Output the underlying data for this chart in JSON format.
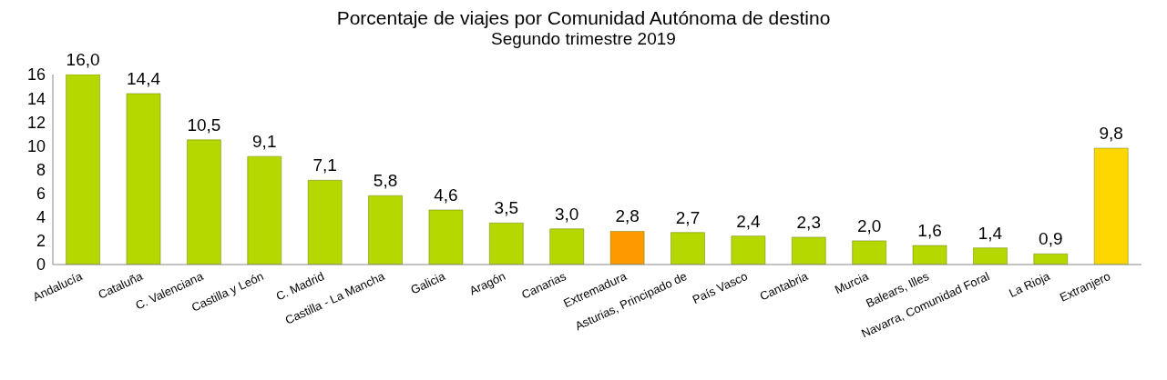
{
  "chart_data": {
    "type": "bar",
    "title": "Porcentaje de viajes por Comunidad Autónoma de destino",
    "subtitle": "Segundo trimestre 2019",
    "categories": [
      "Andalucía",
      "Cataluña",
      "C. Valenciana",
      "Castilla y  León",
      "C. Madrid",
      "Castilla - La Mancha",
      "Galicia",
      "Aragón",
      "Canarias",
      "Extremadura",
      "Asturias, Principado de",
      "País Vasco",
      "Cantabria",
      "Murcia",
      "Balears, Illes",
      "Navarra, Comunidad Foral",
      "La Rioja",
      "Extranjero"
    ],
    "values": [
      16.0,
      14.4,
      10.5,
      9.1,
      7.1,
      5.8,
      4.6,
      3.5,
      3.0,
      2.8,
      2.7,
      2.4,
      2.3,
      2.0,
      1.6,
      1.4,
      0.9,
      9.8
    ],
    "value_labels": [
      "16,0",
      "14,4",
      "10,5",
      "9,1",
      "7,1",
      "5,8",
      "4,6",
      "3,5",
      "3,0",
      "2,8",
      "2,7",
      "2,4",
      "2,3",
      "2,0",
      "1,6",
      "1,4",
      "0,9",
      "9,8"
    ],
    "colors": [
      "#b5d800",
      "#b5d800",
      "#b5d800",
      "#b5d800",
      "#b5d800",
      "#b5d800",
      "#b5d800",
      "#b5d800",
      "#b5d800",
      "#ff9900",
      "#b5d800",
      "#b5d800",
      "#b5d800",
      "#b5d800",
      "#b5d800",
      "#b5d800",
      "#b5d800",
      "#ffd700"
    ],
    "ylim": [
      0,
      16
    ],
    "yticks": [
      0,
      2,
      4,
      6,
      8,
      10,
      12,
      14,
      16
    ]
  }
}
